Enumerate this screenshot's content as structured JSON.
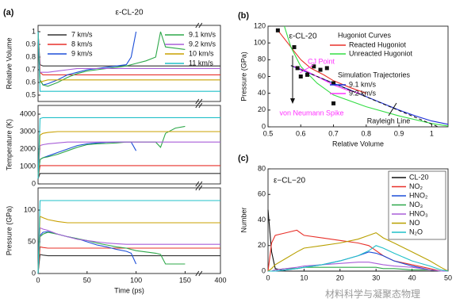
{
  "chart_data": [
    {
      "type": "line",
      "panel_label": "(a)",
      "title": "ε-CL-20",
      "ylabel": "Relative Volume",
      "x": [
        0,
        2,
        5,
        10,
        20,
        30,
        40,
        50,
        60,
        70,
        80,
        90,
        95,
        100,
        110,
        120,
        125,
        130,
        140,
        150,
        400
      ],
      "xlim": [
        0,
        400
      ],
      "axis_break": [
        160,
        390
      ],
      "ylim": [
        0.45,
        1.05
      ],
      "yticks": [
        0.5,
        0.6,
        0.7,
        0.8,
        0.9,
        1
      ],
      "legend": true,
      "series": [
        {
          "name": "7 km/s",
          "color": "#333333",
          "values": [
            1,
            0.74,
            0.73,
            0.73,
            0.73,
            0.73,
            0.73,
            0.73,
            0.73,
            0.73,
            0.73,
            0.73,
            0.73,
            0.73,
            0.73,
            0.73,
            0.73,
            0.73,
            0.73,
            0.73,
            0.73
          ]
        },
        {
          "name": "8 km/s",
          "color": "#e8312a",
          "values": [
            1,
            0.68,
            0.66,
            0.66,
            0.66,
            0.66,
            0.66,
            0.66,
            0.66,
            0.66,
            0.66,
            0.66,
            0.66,
            0.66,
            0.66,
            0.66,
            0.66,
            0.66,
            0.66,
            0.66,
            0.66
          ]
        },
        {
          "name": "9 km/s",
          "color": "#1d4fd8",
          "values": [
            1,
            0.62,
            0.58,
            0.59,
            0.62,
            0.66,
            0.68,
            0.7,
            0.71,
            0.72,
            0.73,
            0.74,
            0.8,
            1,
            null,
            null,
            null,
            null,
            null,
            null,
            null
          ]
        },
        {
          "name": "9.1 km/s",
          "color": "#2ea84a",
          "values": [
            1,
            0.62,
            0.58,
            0.57,
            0.6,
            0.64,
            0.67,
            0.69,
            0.7,
            0.71,
            0.72,
            0.73,
            0.74,
            0.75,
            0.77,
            0.8,
            1,
            0.88,
            0.87,
            0.86,
            null
          ]
        },
        {
          "name": "9.2 km/s",
          "color": "#a85fd8",
          "values": [
            1,
            0.68,
            0.68,
            0.68,
            0.69,
            0.7,
            0.71,
            0.71,
            0.71,
            0.71,
            0.71,
            0.71,
            0.71,
            0.71,
            0.71,
            0.71,
            0.71,
            0.71,
            0.71,
            0.71,
            0.71
          ]
        },
        {
          "name": "10 km/s",
          "color": "#c9a000",
          "values": [
            1,
            0.6,
            0.61,
            0.62,
            0.62,
            0.62,
            0.62,
            0.62,
            0.62,
            0.62,
            0.62,
            0.62,
            0.62,
            0.62,
            0.62,
            0.62,
            0.62,
            0.62,
            0.62,
            0.62,
            0.62
          ]
        },
        {
          "name": "11 km/s",
          "color": "#20c0c8",
          "values": [
            1,
            0.53,
            0.53,
            0.53,
            0.53,
            0.53,
            0.53,
            0.53,
            0.53,
            0.53,
            0.53,
            0.53,
            0.53,
            0.53,
            0.53,
            0.53,
            0.53,
            0.53,
            0.53,
            0.53,
            0.53
          ]
        }
      ]
    },
    {
      "type": "line",
      "ylabel": "Temperature (K)",
      "x": [
        0,
        2,
        5,
        10,
        20,
        30,
        40,
        50,
        60,
        70,
        80,
        90,
        95,
        100,
        110,
        120,
        125,
        130,
        140,
        150,
        400
      ],
      "xlim": [
        0,
        400
      ],
      "axis_break": [
        160,
        390
      ],
      "ylim": [
        0,
        4500
      ],
      "yticks": [
        0,
        1000,
        2000,
        3000,
        4000
      ],
      "series": [
        {
          "name": "7 km/s",
          "color": "#333333",
          "values": [
            300,
            600,
            600,
            600,
            600,
            600,
            600,
            600,
            600,
            600,
            600,
            600,
            600,
            600,
            600,
            600,
            600,
            600,
            600,
            600,
            600
          ]
        },
        {
          "name": "8 km/s",
          "color": "#e8312a",
          "values": [
            300,
            1050,
            1050,
            1050,
            1050,
            1050,
            1050,
            1050,
            1050,
            1050,
            1050,
            1050,
            1050,
            1050,
            1050,
            1050,
            1050,
            1050,
            1050,
            1050,
            1050
          ]
        },
        {
          "name": "9 km/s",
          "color": "#1d4fd8",
          "values": [
            300,
            1400,
            1500,
            1600,
            1800,
            2000,
            2200,
            2300,
            2350,
            2380,
            2400,
            2400,
            2400,
            1900,
            null,
            null,
            null,
            null,
            null,
            null,
            null
          ]
        },
        {
          "name": "9.1 km/s",
          "color": "#2ea84a",
          "values": [
            300,
            1400,
            1500,
            1550,
            1700,
            1900,
            2100,
            2250,
            2300,
            2320,
            2350,
            2400,
            2400,
            2400,
            2400,
            2400,
            2100,
            2900,
            3200,
            3300,
            null
          ]
        },
        {
          "name": "9.2 km/s",
          "color": "#a85fd8",
          "values": [
            300,
            2200,
            2250,
            2300,
            2350,
            2400,
            2400,
            2400,
            2400,
            2400,
            2400,
            2400,
            2400,
            2400,
            2400,
            2400,
            2400,
            2400,
            2400,
            2400,
            2400
          ]
        },
        {
          "name": "10 km/s",
          "color": "#c9a000",
          "values": [
            300,
            2800,
            2900,
            2950,
            3000,
            3000,
            3000,
            3000,
            3000,
            3000,
            3000,
            3000,
            3000,
            3000,
            3000,
            3000,
            3000,
            3000,
            3000,
            3000,
            3000
          ]
        },
        {
          "name": "11 km/s",
          "color": "#20c0c8",
          "values": [
            300,
            3750,
            3800,
            3800,
            3800,
            3800,
            3800,
            3800,
            3800,
            3800,
            3800,
            3800,
            3800,
            3800,
            3800,
            3800,
            3800,
            3800,
            3800,
            3800,
            3800
          ]
        }
      ]
    },
    {
      "type": "line",
      "ylabel": "Pressure (GPa)",
      "xlabel": "Time (ps)",
      "x": [
        0,
        2,
        5,
        10,
        20,
        30,
        40,
        50,
        60,
        70,
        80,
        90,
        95,
        100,
        110,
        120,
        125,
        130,
        140,
        150,
        400
      ],
      "xlim": [
        0,
        400
      ],
      "axis_break": [
        160,
        390
      ],
      "xticks": [
        0,
        50,
        100,
        150,
        400
      ],
      "ylim": [
        0,
        135
      ],
      "yticks": [
        0,
        50,
        100
      ],
      "series": [
        {
          "name": "7 km/s",
          "color": "#333333",
          "values": [
            0,
            30,
            29,
            28,
            28,
            28,
            28,
            28,
            28,
            28,
            28,
            28,
            28,
            28,
            28,
            28,
            28,
            28,
            28,
            28,
            28
          ]
        },
        {
          "name": "8 km/s",
          "color": "#e8312a",
          "values": [
            0,
            42,
            41,
            40,
            40,
            40,
            40,
            40,
            40,
            40,
            40,
            40,
            40,
            40,
            40,
            40,
            40,
            40,
            40,
            40,
            40
          ]
        },
        {
          "name": "9 km/s",
          "color": "#1d4fd8",
          "values": [
            0,
            60,
            65,
            66,
            62,
            58,
            55,
            50,
            45,
            42,
            38,
            35,
            32,
            15,
            null,
            null,
            null,
            null,
            null,
            null,
            null
          ]
        },
        {
          "name": "9.1 km/s",
          "color": "#2ea84a",
          "values": [
            0,
            58,
            62,
            65,
            62,
            58,
            55,
            52,
            48,
            45,
            42,
            40,
            38,
            36,
            34,
            32,
            30,
            15,
            15,
            15,
            null
          ]
        },
        {
          "name": "9.2 km/s",
          "color": "#a85fd8",
          "values": [
            0,
            72,
            70,
            68,
            62,
            58,
            54,
            52,
            50,
            48,
            47,
            46,
            46,
            46,
            46,
            46,
            46,
            46,
            46,
            46,
            46
          ]
        },
        {
          "name": "10 km/s",
          "color": "#c9a000",
          "values": [
            0,
            90,
            88,
            85,
            82,
            80,
            80,
            80,
            80,
            80,
            80,
            80,
            80,
            80,
            80,
            80,
            80,
            80,
            80,
            80,
            80
          ]
        },
        {
          "name": "11 km/s",
          "color": "#20c0c8",
          "values": [
            0,
            115,
            115,
            115,
            115,
            115,
            115,
            115,
            115,
            115,
            115,
            115,
            115,
            115,
            115,
            115,
            115,
            115,
            115,
            115,
            115
          ]
        }
      ]
    },
    {
      "type": "scatter-line",
      "panel_label": "(b)",
      "title": "ε-CL-20",
      "xlabel": "Relative Volume",
      "ylabel": "Pressure (GPa)",
      "xlim": [
        0.5,
        1.05
      ],
      "xticks": [
        0.5,
        0.6,
        0.7,
        0.8,
        0.9,
        1
      ],
      "ylim": [
        0,
        120
      ],
      "yticks": [
        0,
        20,
        40,
        60,
        80,
        100,
        120
      ],
      "legend_groups": [
        "Hugoniot Curves",
        "Simulation Trajectories"
      ],
      "series": [
        {
          "name": "Reacted Hugoniot",
          "color": "#e8312a",
          "x": [
            0.53,
            0.56,
            0.58,
            0.6,
            0.63,
            0.67,
            0.7,
            0.75,
            0.8
          ],
          "values": [
            115,
            100,
            90,
            80,
            70,
            62,
            55,
            47,
            40
          ]
        },
        {
          "name": "Unreacted Hugoniot",
          "color": "#33dd44",
          "x": [
            0.55,
            0.57,
            0.6,
            0.65,
            0.7,
            0.8,
            0.9,
            1.0,
            1.05
          ],
          "values": [
            120,
            95,
            72,
            52,
            38,
            24,
            13,
            4,
            1
          ]
        },
        {
          "name": "9.1 km/s",
          "color": "#1d2fd8",
          "x": [
            0.57,
            0.6,
            0.65,
            0.7,
            0.75,
            0.8,
            0.85,
            0.9,
            0.95,
            1.0,
            1.05
          ],
          "values": [
            73,
            68,
            60,
            52,
            44,
            36,
            28,
            20,
            13,
            7,
            3
          ]
        },
        {
          "name": "9.2 km/s",
          "color": "#ff33ff",
          "x": [
            0.58,
            0.62,
            0.66,
            0.7,
            0.74,
            0.78
          ],
          "values": [
            72,
            66,
            58,
            50,
            44,
            40
          ]
        }
      ],
      "markers": {
        "color": "#111111",
        "x": [
          0.53,
          0.58,
          0.59,
          0.6,
          0.62,
          0.64,
          0.66,
          0.68,
          0.7,
          0.7
        ],
        "values": [
          115,
          95,
          70,
          60,
          62,
          72,
          68,
          70,
          52,
          28
        ]
      },
      "reference_line": {
        "color": "#111111",
        "x": [
          0.57,
          1.02
        ],
        "values": [
          73,
          0
        ]
      },
      "annotations": [
        {
          "text": "CJ Point",
          "color": "#ff33ff"
        },
        {
          "text": "von Neumann Spike",
          "color": "#ff33ff"
        },
        {
          "text": "Rayleigh Line",
          "color": "#111111"
        }
      ]
    },
    {
      "type": "line",
      "panel_label": "(c)",
      "title": "ε−CL−20",
      "ylabel": "Number",
      "x": [
        0,
        1,
        2,
        5,
        8,
        10,
        15,
        20,
        25,
        28,
        30,
        32,
        35,
        40,
        45,
        48,
        50
      ],
      "xlim": [
        0,
        50
      ],
      "xticks": [
        0,
        10,
        20,
        30,
        40,
        50
      ],
      "ylim": [
        0,
        80
      ],
      "yticks": [
        0,
        20,
        40,
        60,
        80
      ],
      "legend": true,
      "series": [
        {
          "name": "CL-20",
          "color": "#111111",
          "values": [
            48,
            15,
            2,
            0,
            0,
            0,
            0,
            0,
            0,
            0,
            0,
            0,
            0,
            0,
            0,
            0,
            0
          ]
        },
        {
          "name": "NO₂",
          "color": "#e8312a",
          "values": [
            0,
            22,
            28,
            30,
            32,
            28,
            26,
            24,
            22,
            20,
            16,
            12,
            8,
            5,
            2,
            0,
            0
          ]
        },
        {
          "name": "HNO₂",
          "color": "#1d4fd8",
          "values": [
            0,
            0,
            0,
            1,
            2,
            3,
            5,
            8,
            12,
            15,
            14,
            12,
            8,
            4,
            1,
            0,
            0
          ]
        },
        {
          "name": "NO₃",
          "color": "#2ea84a",
          "values": [
            0,
            0,
            1,
            2,
            2,
            3,
            3,
            3,
            3,
            3,
            3,
            2,
            2,
            1,
            1,
            0,
            0
          ]
        },
        {
          "name": "HNO₃",
          "color": "#a85fd8",
          "values": [
            0,
            0,
            1,
            2,
            3,
            4,
            5,
            6,
            7,
            7,
            6,
            5,
            4,
            3,
            1,
            0,
            0
          ]
        },
        {
          "name": "NO",
          "color": "#b8a000",
          "values": [
            0,
            2,
            5,
            10,
            15,
            18,
            20,
            22,
            25,
            28,
            30,
            26,
            22,
            15,
            8,
            3,
            0
          ]
        },
        {
          "name": "N₂O",
          "color": "#20c0c8",
          "values": [
            0,
            0,
            0,
            1,
            2,
            3,
            5,
            8,
            12,
            16,
            20,
            18,
            14,
            8,
            4,
            1,
            0
          ]
        }
      ]
    }
  ],
  "watermark": "材料科学与凝聚态物理"
}
